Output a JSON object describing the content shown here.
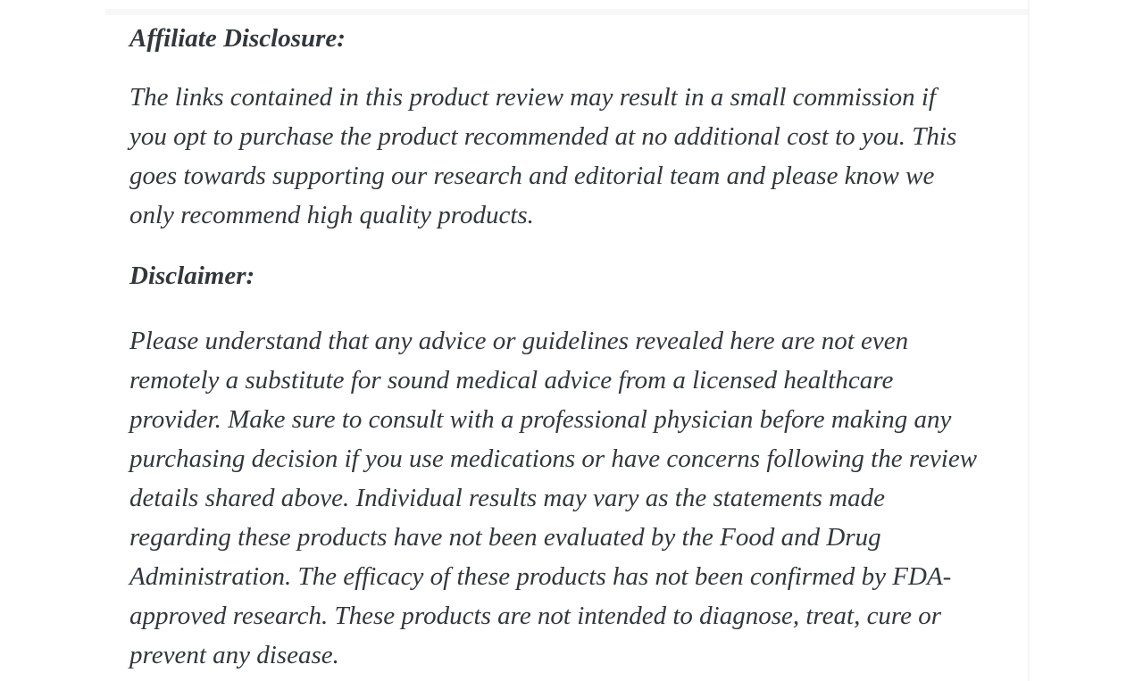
{
  "page": {
    "background_color": "#ffffff",
    "text_color": "#32373c",
    "column_divider_color": "#f5f5f6",
    "sections": [
      {
        "heading": "Affiliate Disclosure:",
        "body": "The links contained in this product review may result in a small commission if\nyou opt to purchase the product recommended at no additional cost to you. This\ngoes towards supporting our research and editorial team and please know we\nonly recommend high quality products."
      },
      {
        "heading": "Disclaimer:",
        "body": "Please understand that any advice or guidelines revealed here are not even\nremotely a substitute for sound medical advice from a licensed healthcare\nprovider. Make sure to consult with a professional physician before making any\npurchasing decision if you use medications or have concerns following the review\ndetails shared above. Individual results may vary as the statements made\nregarding these products have not been evaluated by the Food and Drug\nAdministration. The efficacy of these products has not been confirmed by FDA-\napproved research. These products are not intended to diagnose, treat, cure or\nprevent any disease."
      }
    ]
  }
}
